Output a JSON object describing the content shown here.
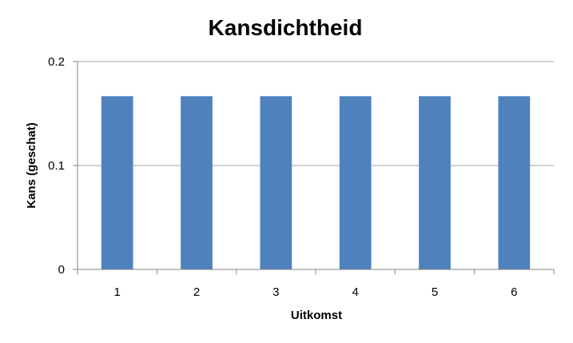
{
  "chart_data": {
    "type": "bar",
    "title": "Kansdichtheid",
    "xlabel": "Uitkomst",
    "ylabel": "Kans (geschat)",
    "categories": [
      "1",
      "2",
      "3",
      "4",
      "5",
      "6"
    ],
    "values": [
      0.1667,
      0.1667,
      0.1667,
      0.1667,
      0.1667,
      0.1667
    ],
    "ylim": [
      0,
      0.2
    ],
    "yticks": [
      "0",
      "0.1",
      "0.2"
    ],
    "grid": true,
    "legend": "none",
    "bar_color": "#4F81BD",
    "grid_color": "#A6A6A6",
    "axis_color": "#868686"
  }
}
